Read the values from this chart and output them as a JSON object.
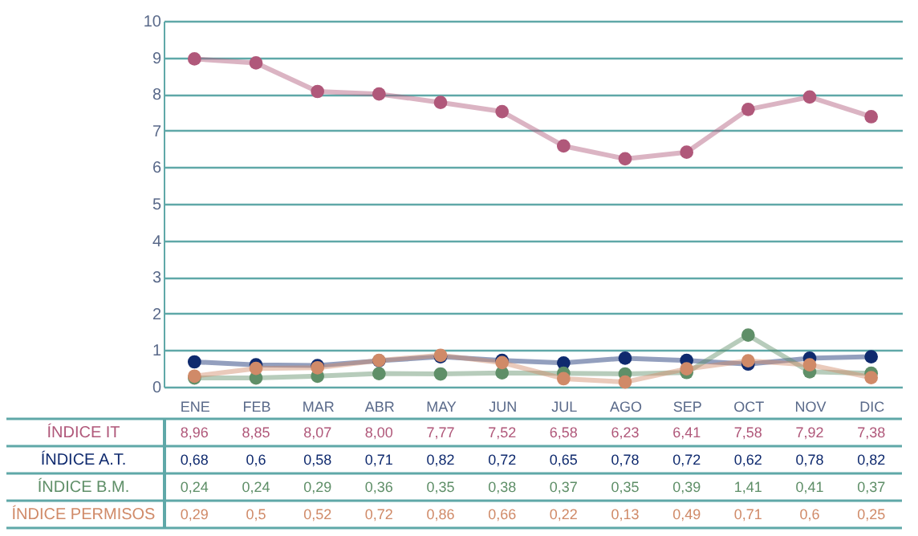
{
  "chart_data": {
    "type": "line",
    "categories": [
      "ENE",
      "FEB",
      "MAR",
      "ABR",
      "MAY",
      "JUN",
      "JUL",
      "AGO",
      "SEP",
      "OCT",
      "NOV",
      "DIC"
    ],
    "series": [
      {
        "name": "ÍNDICE IT",
        "color": "#b0587a",
        "values": [
          8.96,
          8.85,
          8.07,
          8.0,
          7.77,
          7.52,
          6.58,
          6.23,
          6.41,
          7.58,
          7.92,
          7.38
        ],
        "value_labels": [
          "8,96",
          "8,85",
          "8,07",
          "8,00",
          "7,77",
          "7,52",
          "6,58",
          "6,23",
          "6,41",
          "7,58",
          "7,92",
          "7,38"
        ]
      },
      {
        "name": "ÍNDICE A.T.",
        "color": "#0f2a6e",
        "values": [
          0.68,
          0.6,
          0.58,
          0.71,
          0.82,
          0.72,
          0.65,
          0.78,
          0.72,
          0.62,
          0.78,
          0.82
        ],
        "value_labels": [
          "0,68",
          "0,6",
          "0,58",
          "0,71",
          "0,82",
          "0,72",
          "0,65",
          "0,78",
          "0,72",
          "0,62",
          "0,78",
          "0,82"
        ]
      },
      {
        "name": "ÍNDICE B.M.",
        "color": "#5f8f68",
        "values": [
          0.24,
          0.24,
          0.29,
          0.36,
          0.35,
          0.38,
          0.37,
          0.35,
          0.39,
          1.41,
          0.41,
          0.37
        ],
        "value_labels": [
          "0,24",
          "0,24",
          "0,29",
          "0,36",
          "0,35",
          "0,38",
          "0,37",
          "0,35",
          "0,39",
          "1,41",
          "0,41",
          "0,37"
        ]
      },
      {
        "name": "ÍNDICE PERMISOS",
        "color": "#d08a68",
        "values": [
          0.29,
          0.5,
          0.52,
          0.72,
          0.86,
          0.66,
          0.22,
          0.13,
          0.49,
          0.71,
          0.6,
          0.25
        ],
        "value_labels": [
          "0,29",
          "0,5",
          "0,52",
          "0,72",
          "0,86",
          "0,66",
          "0,22",
          "0,13",
          "0,49",
          "0,71",
          "0,6",
          "0,25"
        ]
      }
    ],
    "ylim": [
      0,
      10
    ],
    "yticks": [
      0,
      1,
      2,
      3,
      4,
      5,
      6,
      7,
      8,
      9,
      10
    ],
    "grid": "y",
    "marker": "circle",
    "line_style": "solid"
  }
}
